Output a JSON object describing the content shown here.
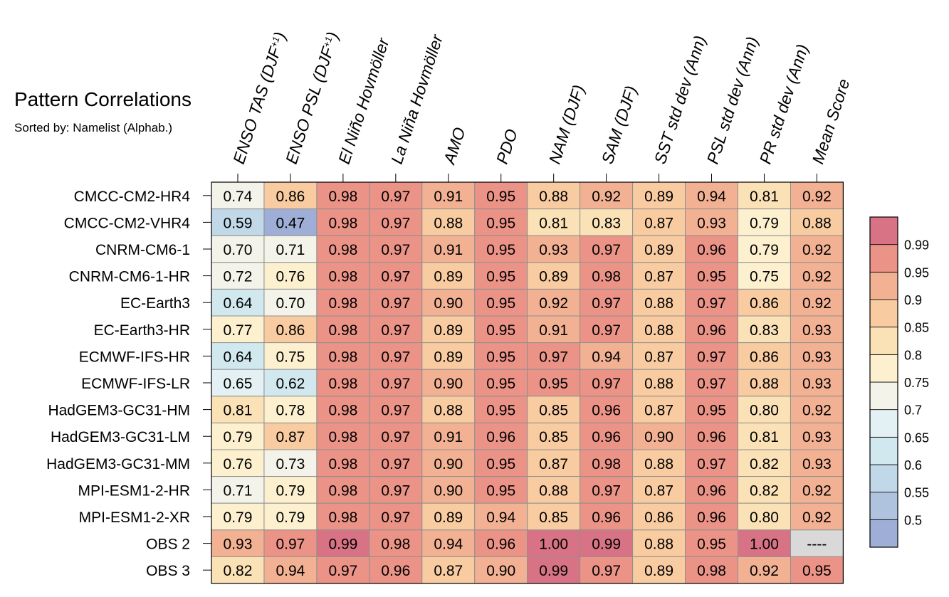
{
  "title": "Pattern Correlations",
  "subtitle": "Sorted by: Namelist (Alphab.)",
  "chart_data": {
    "type": "heatmap",
    "title": "Pattern Correlations",
    "subtitle": "Sorted by: Namelist (Alphab.)",
    "columns": [
      {
        "text": "ENSO TAS (DJF",
        "sup": "+1",
        "tail": ")"
      },
      {
        "text": "ENSO PSL (DJF",
        "sup": "+1",
        "tail": ")"
      },
      {
        "text": "El Niño Hovmöller"
      },
      {
        "text": "La Niña Hovmöller"
      },
      {
        "text": "AMO"
      },
      {
        "text": "PDO"
      },
      {
        "text": "NAM (DJF)"
      },
      {
        "text": "SAM (DJF)"
      },
      {
        "text": "SST std dev (Ann)"
      },
      {
        "text": "PSL std dev (Ann)"
      },
      {
        "text": "PR std dev (Ann)"
      },
      {
        "text": "Mean Score"
      }
    ],
    "rows": [
      "CMCC-CM2-HR4",
      "CMCC-CM2-VHR4",
      "CNRM-CM6-1",
      "CNRM-CM6-1-HR",
      "EC-Earth3",
      "EC-Earth3-HR",
      "ECMWF-IFS-HR",
      "ECMWF-IFS-LR",
      "HadGEM3-GC31-HM",
      "HadGEM3-GC31-LM",
      "HadGEM3-GC31-MM",
      "MPI-ESM1-2-HR",
      "MPI-ESM1-2-XR",
      "OBS 2",
      "OBS 3"
    ],
    "values": [
      [
        "0.74",
        "0.86",
        "0.98",
        "0.97",
        "0.91",
        "0.95",
        "0.88",
        "0.92",
        "0.89",
        "0.94",
        "0.81",
        "0.92"
      ],
      [
        "0.59",
        "0.47",
        "0.98",
        "0.97",
        "0.88",
        "0.95",
        "0.81",
        "0.83",
        "0.87",
        "0.93",
        "0.79",
        "0.88"
      ],
      [
        "0.70",
        "0.71",
        "0.98",
        "0.97",
        "0.91",
        "0.95",
        "0.93",
        "0.97",
        "0.89",
        "0.96",
        "0.79",
        "0.92"
      ],
      [
        "0.72",
        "0.76",
        "0.98",
        "0.97",
        "0.89",
        "0.95",
        "0.89",
        "0.98",
        "0.87",
        "0.95",
        "0.75",
        "0.92"
      ],
      [
        "0.64",
        "0.70",
        "0.98",
        "0.97",
        "0.90",
        "0.95",
        "0.92",
        "0.97",
        "0.88",
        "0.97",
        "0.86",
        "0.92"
      ],
      [
        "0.77",
        "0.86",
        "0.98",
        "0.97",
        "0.89",
        "0.95",
        "0.91",
        "0.97",
        "0.88",
        "0.96",
        "0.83",
        "0.93"
      ],
      [
        "0.64",
        "0.75",
        "0.98",
        "0.97",
        "0.89",
        "0.95",
        "0.97",
        "0.94",
        "0.87",
        "0.97",
        "0.86",
        "0.93"
      ],
      [
        "0.65",
        "0.62",
        "0.98",
        "0.97",
        "0.90",
        "0.95",
        "0.95",
        "0.97",
        "0.88",
        "0.97",
        "0.88",
        "0.93"
      ],
      [
        "0.81",
        "0.78",
        "0.98",
        "0.97",
        "0.88",
        "0.95",
        "0.85",
        "0.96",
        "0.87",
        "0.95",
        "0.80",
        "0.92"
      ],
      [
        "0.79",
        "0.87",
        "0.98",
        "0.97",
        "0.91",
        "0.96",
        "0.85",
        "0.96",
        "0.90",
        "0.96",
        "0.81",
        "0.93"
      ],
      [
        "0.76",
        "0.73",
        "0.98",
        "0.97",
        "0.90",
        "0.95",
        "0.87",
        "0.98",
        "0.88",
        "0.97",
        "0.82",
        "0.93"
      ],
      [
        "0.71",
        "0.79",
        "0.98",
        "0.97",
        "0.90",
        "0.95",
        "0.88",
        "0.97",
        "0.87",
        "0.96",
        "0.82",
        "0.92"
      ],
      [
        "0.79",
        "0.79",
        "0.98",
        "0.97",
        "0.89",
        "0.94",
        "0.85",
        "0.96",
        "0.86",
        "0.96",
        "0.80",
        "0.92"
      ],
      [
        "0.93",
        "0.97",
        "0.99",
        "0.98",
        "0.94",
        "0.96",
        "1.00",
        "0.99",
        "0.88",
        "0.95",
        "1.00",
        "----"
      ],
      [
        "0.82",
        "0.94",
        "0.97",
        "0.96",
        "0.87",
        "0.90",
        "0.99",
        "0.97",
        "0.89",
        "0.98",
        "0.92",
        "0.95"
      ]
    ],
    "missing_color": "#d9d9d9",
    "colorbar": {
      "ticks": [
        "0.99",
        "0.95",
        "0.9",
        "0.85",
        "0.8",
        "0.75",
        "0.7",
        "0.65",
        "0.6",
        "0.55",
        "0.5"
      ],
      "levels": [
        0.5,
        0.55,
        0.6,
        0.65,
        0.7,
        0.75,
        0.8,
        0.85,
        0.9,
        0.95,
        0.99
      ],
      "colors": [
        "#9eaed6",
        "#afc2de",
        "#c1d8e8",
        "#d2e8ef",
        "#e4f1f4",
        "#f3f3e9",
        "#fcf0cf",
        "#fbe1b6",
        "#f8cba1",
        "#f3b194",
        "#eb9387",
        "#d87385"
      ]
    }
  }
}
